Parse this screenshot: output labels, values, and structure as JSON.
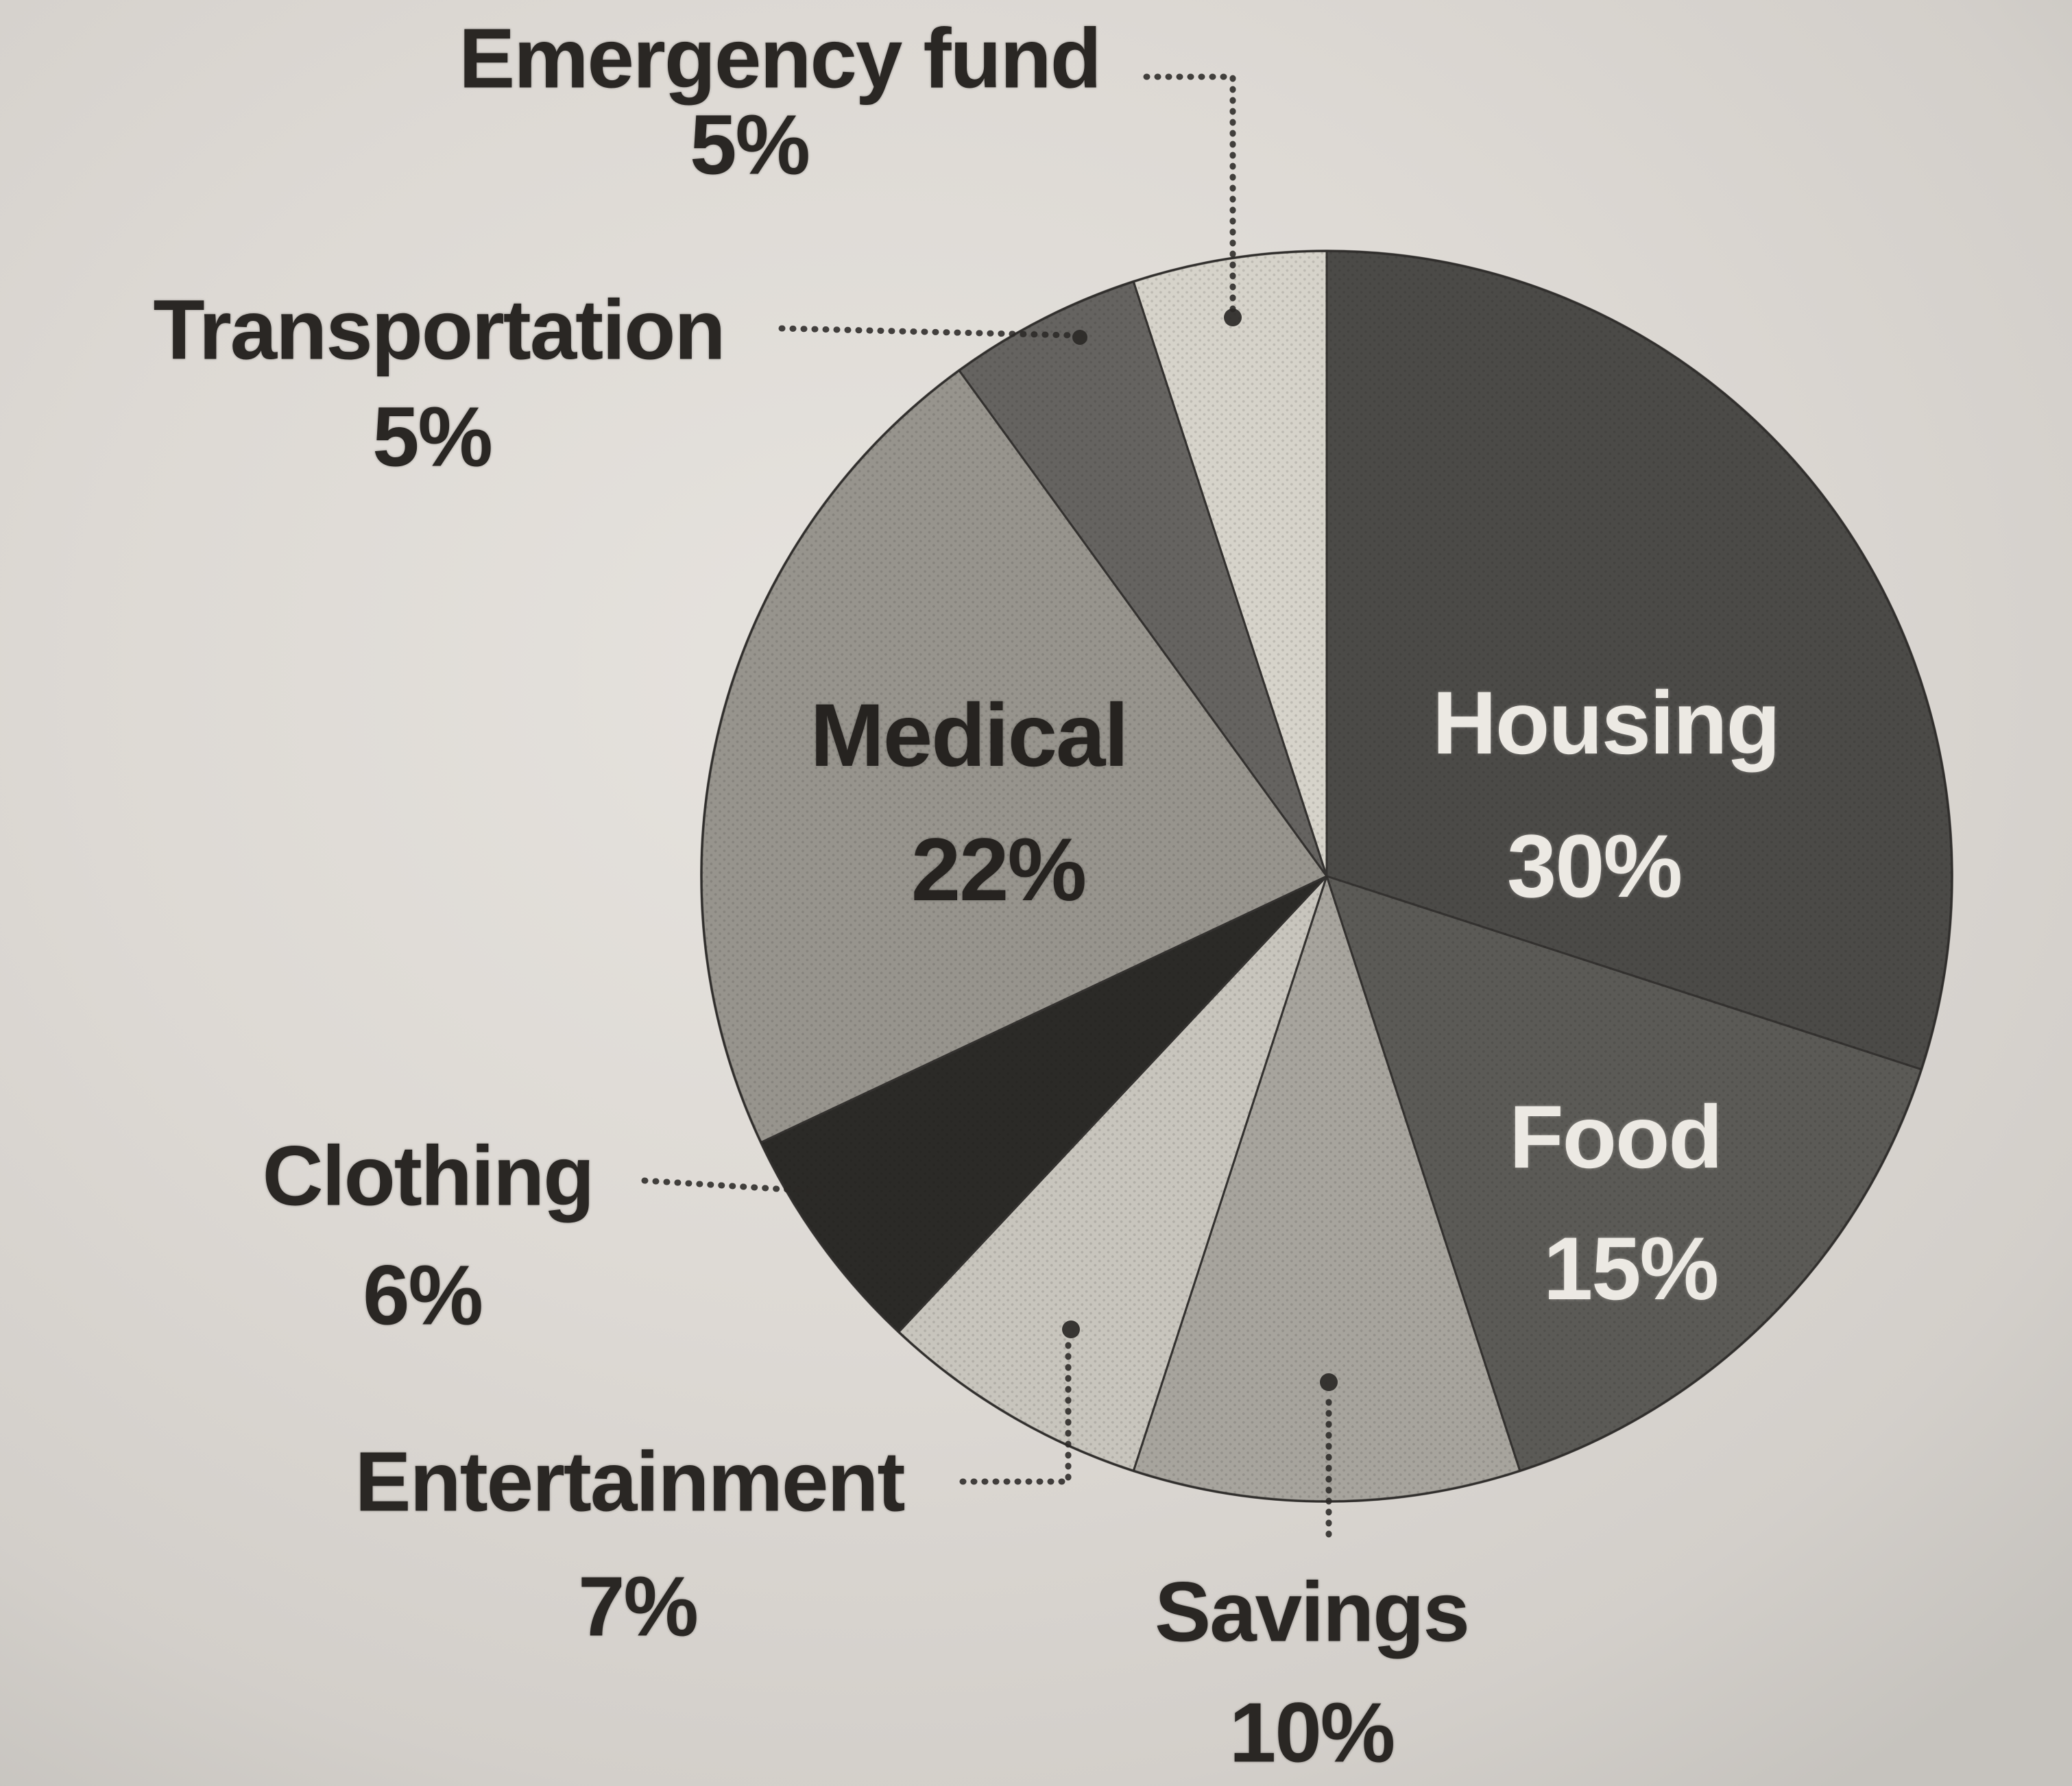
{
  "chart_data": {
    "type": "pie",
    "title": "",
    "start_angle_deg": 0,
    "direction": "clockwise",
    "total": 100,
    "slices": [
      {
        "label": "Housing",
        "value": 30,
        "pct_text": "30%",
        "fill": "#4b4a47",
        "label_placement": "inside-light"
      },
      {
        "label": "Food",
        "value": 15,
        "pct_text": "15%",
        "fill": "#5b5a56",
        "label_placement": "inside-light"
      },
      {
        "label": "Savings",
        "value": 10,
        "pct_text": "10%",
        "fill": "#a7a49d",
        "label_placement": "outside-below"
      },
      {
        "label": "Entertainment",
        "value": 7,
        "pct_text": "7%",
        "fill": "#c8c5bd",
        "label_placement": "outside-left"
      },
      {
        "label": "Clothing",
        "value": 6,
        "pct_text": "6%",
        "fill": "#2b2a27",
        "label_placement": "outside-left"
      },
      {
        "label": "Medical",
        "value": 22,
        "pct_text": "22%",
        "fill": "#97948d",
        "label_placement": "inside-dark"
      },
      {
        "label": "Transportation",
        "value": 5,
        "pct_text": "5%",
        "fill": "#656360",
        "label_placement": "outside-left"
      },
      {
        "label": "Emergency fund",
        "value": 5,
        "pct_text": "5%",
        "fill": "#d6d3ca",
        "label_placement": "outside-top"
      }
    ]
  },
  "colors": {
    "paper": "#ddd9d4",
    "ink": "#2a2724",
    "slice_border": "#343230",
    "leader": "#2b2927",
    "light_label": "#ece9e3"
  }
}
